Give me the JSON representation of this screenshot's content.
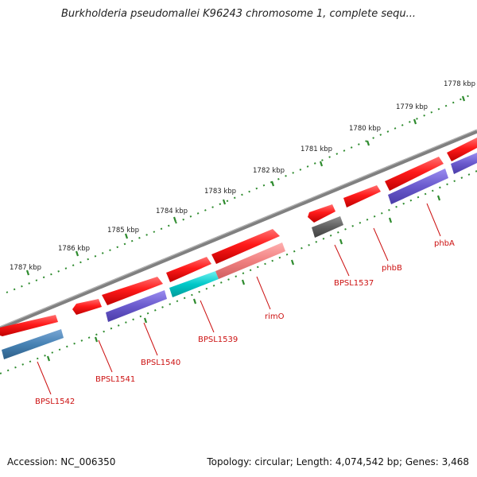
{
  "title": "Burkholderia pseudomallei K96243 chromosome 1, complete sequ...",
  "footer": {
    "accession": "Accession: NC_006350",
    "summary": "Topology: circular; Length: 4,074,542 bp; Genes: 3,468"
  },
  "scale": {
    "unit": "kbp",
    "ticks": [
      "1778 kbp",
      "1779 kbp",
      "1780 kbp",
      "1781 kbp",
      "1782 kbp",
      "1783 kbp",
      "1784 kbp",
      "1785 kbp",
      "1786 kbp",
      "1787 kbp"
    ]
  },
  "colors": {
    "backbone": "#808080",
    "forward_gene": "#ff1a1a",
    "reverse_gene": "#6a5acd",
    "reverse_gene_alt": "#4682b4",
    "rrna_gene": "#00c8c8",
    "pseudo_gene": "#f08080",
    "other_gene": "#606060",
    "tick": "#2e8b2e",
    "label": "#cc1111"
  },
  "gene_labels": [
    "BPSL1542",
    "BPSL1541",
    "BPSL1540",
    "BPSL1539",
    "rimO",
    "BPSL1537",
    "phbB",
    "phbA"
  ]
}
